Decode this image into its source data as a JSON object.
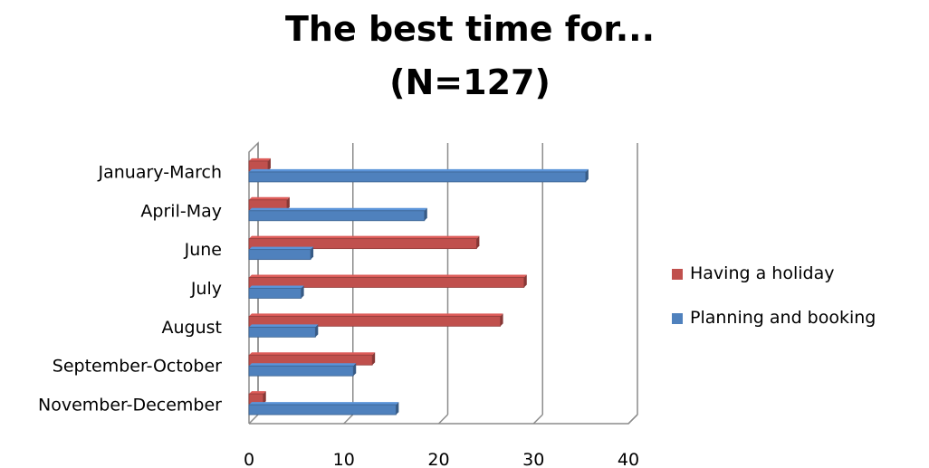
{
  "chart_data": {
    "type": "bar",
    "orientation": "horizontal",
    "title": "The best time for...",
    "subtitle": "(N=127)",
    "categories": [
      "January-March",
      "April-May",
      "June",
      "July",
      "August",
      "September-October",
      "November-December"
    ],
    "series": [
      {
        "name": "Having a holiday",
        "color": "#c0504d",
        "values": [
          2,
          4,
          24,
          29,
          26.5,
          13,
          1.5
        ]
      },
      {
        "name": "Planning and booking",
        "color": "#4f81bd",
        "values": [
          35.5,
          18.5,
          6.5,
          5.5,
          7,
          11,
          15.5
        ]
      }
    ],
    "xlim": [
      0,
      40
    ],
    "xticks": [
      "0",
      "10",
      "20",
      "30",
      "40"
    ],
    "grid": true,
    "legend_position": "right"
  }
}
